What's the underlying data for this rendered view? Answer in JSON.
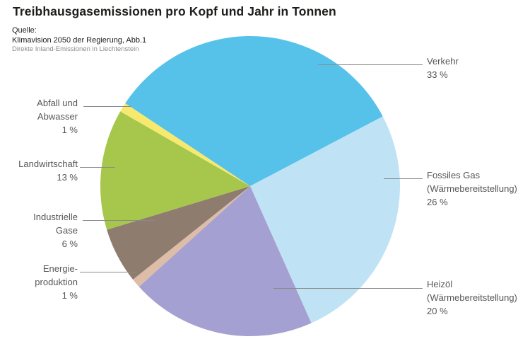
{
  "title": "Treibhausgasemissionen pro Kopf und Jahr in Tonnen",
  "source": {
    "label": "Quelle:",
    "line1": "Klimavision 2050 der Regierung, Abb.1",
    "line2": "Direkte Inland-Emissionen in Liechtenstein"
  },
  "labels": {
    "verkehr": {
      "l1": "Verkehr",
      "pct": "33 %"
    },
    "fossiles": {
      "l1": "Fossiles Gas",
      "l2": "(Wärmebereitstellung)",
      "pct": "26 %"
    },
    "heizoel": {
      "l1": "Heizöl",
      "l2": "(Wärmebereitstellung)",
      "pct": "20 %"
    },
    "abfall": {
      "l1": "Abfall und",
      "l2": "Abwasser",
      "pct": "1 %"
    },
    "landwirtschaft": {
      "l1": "Landwirtschaft",
      "pct": "13 %"
    },
    "industrielle": {
      "l1": "Industrielle",
      "l2": "Gase",
      "pct": "6 %"
    },
    "energie": {
      "l1": "Energie-",
      "l2": "produktion",
      "pct": "1 %"
    }
  },
  "chart_data": {
    "type": "pie",
    "title": "Treibhausgasemissionen pro Kopf und Jahr in Tonnen",
    "categories": [
      "Verkehr",
      "Fossiles Gas (Wärmebereitstellung)",
      "Heizöl (Wärmebereitstellung)",
      "Energieproduktion",
      "Industrielle Gase",
      "Landwirtschaft",
      "Abfall und Abwasser"
    ],
    "values": [
      33,
      26,
      20,
      1,
      6,
      13,
      1
    ],
    "unit": "%",
    "colors": [
      "#56c2e9",
      "#bfe3f5",
      "#a4a0d1",
      "#ddbda8",
      "#8e7c6f",
      "#a6c74b",
      "#f6e96e"
    ],
    "start_angle_deg": 146.5,
    "direction": "clockwise",
    "legend_position": "callout-labels",
    "line_color": "#8a8a8a",
    "label_color": "#575756"
  }
}
